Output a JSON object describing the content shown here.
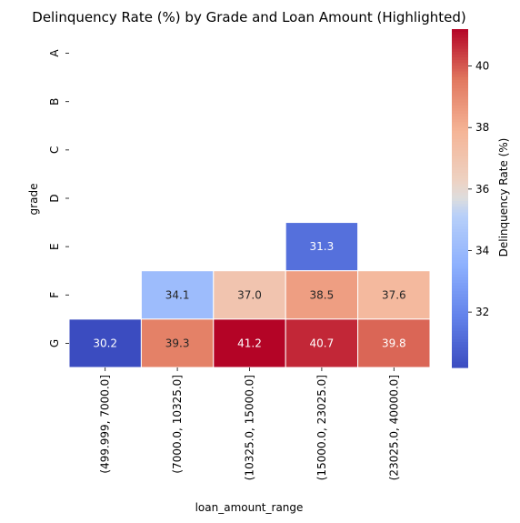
{
  "chart_data": {
    "type": "heatmap",
    "title": "Delinquency Rate (%) by Grade and Loan Amount (Highlighted)",
    "xlabel": "loan_amount_range",
    "ylabel": "grade",
    "x_categories": [
      "(499.999, 7000.0]",
      "(7000.0, 10325.0]",
      "(10325.0, 15000.0]",
      "(15000.0, 23025.0]",
      "(23025.0, 40000.0]"
    ],
    "y_categories": [
      "A",
      "B",
      "C",
      "D",
      "E",
      "F",
      "G"
    ],
    "values": [
      [
        null,
        null,
        null,
        null,
        null
      ],
      [
        null,
        null,
        null,
        null,
        null
      ],
      [
        null,
        null,
        null,
        null,
        null
      ],
      [
        null,
        null,
        null,
        null,
        null
      ],
      [
        null,
        null,
        null,
        31.3,
        null
      ],
      [
        null,
        34.1,
        37.0,
        38.5,
        37.6
      ],
      [
        30.2,
        39.3,
        41.2,
        40.7,
        39.8
      ]
    ],
    "colorbar": {
      "label": "Delinquency Rate (%)",
      "ticks": [
        32,
        34,
        36,
        38,
        40
      ],
      "vmin": 30.2,
      "vmax": 41.2,
      "colormap": "coolwarm"
    }
  }
}
